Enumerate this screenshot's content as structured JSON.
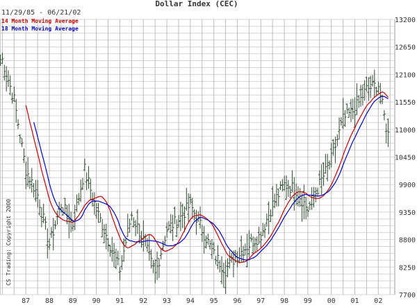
{
  "chart_data": {
    "type": "ohlc",
    "title": "Dollar Index (CEC)",
    "date_range": "11/29/85 - 06/21/02",
    "copyright": "CS Trading: Copyright 2000",
    "legend": [
      {
        "name": "14 Month Moving Average",
        "color": "#cc0000"
      },
      {
        "name": "18 Month Moving Average",
        "color": "#0000cc"
      }
    ],
    "x_ticks": [
      "87",
      "88",
      "89",
      "90",
      "91",
      "92",
      "93",
      "94",
      "95",
      "96",
      "97",
      "98",
      "99",
      "00",
      "01",
      "02"
    ],
    "y_ticks": [
      13200,
      12650,
      12100,
      11550,
      11000,
      10450,
      9900,
      9350,
      8800,
      8250,
      7700
    ],
    "ylim": [
      7700,
      13200
    ],
    "y_axis_side": "right",
    "grid": true,
    "bar_color": "#2e4a2e",
    "monthly_close_key": [
      {
        "x": 1986.0,
        "y": 12400
      },
      {
        "x": 1986.5,
        "y": 11600
      },
      {
        "x": 1987.0,
        "y": 10200
      },
      {
        "x": 1987.5,
        "y": 9700
      },
      {
        "x": 1988.0,
        "y": 8700
      },
      {
        "x": 1988.5,
        "y": 9500
      },
      {
        "x": 1989.0,
        "y": 9100
      },
      {
        "x": 1989.5,
        "y": 10200
      },
      {
        "x": 1990.0,
        "y": 9400
      },
      {
        "x": 1990.5,
        "y": 8800
      },
      {
        "x": 1991.0,
        "y": 8200
      },
      {
        "x": 1991.5,
        "y": 9300
      },
      {
        "x": 1992.0,
        "y": 8800
      },
      {
        "x": 1992.5,
        "y": 8100
      },
      {
        "x": 1993.0,
        "y": 9000
      },
      {
        "x": 1993.5,
        "y": 9200
      },
      {
        "x": 1994.0,
        "y": 9500
      },
      {
        "x": 1994.5,
        "y": 9000
      },
      {
        "x": 1995.0,
        "y": 8500
      },
      {
        "x": 1995.5,
        "y": 8200
      },
      {
        "x": 1996.0,
        "y": 8500
      },
      {
        "x": 1996.5,
        "y": 8700
      },
      {
        "x": 1997.0,
        "y": 8900
      },
      {
        "x": 1997.5,
        "y": 9500
      },
      {
        "x": 1998.0,
        "y": 9900
      },
      {
        "x": 1998.5,
        "y": 9800
      },
      {
        "x": 1999.0,
        "y": 9400
      },
      {
        "x": 1999.5,
        "y": 9900
      },
      {
        "x": 2000.0,
        "y": 10400
      },
      {
        "x": 2000.5,
        "y": 11200
      },
      {
        "x": 2001.0,
        "y": 11400
      },
      {
        "x": 2001.5,
        "y": 11800
      },
      {
        "x": 2002.0,
        "y": 11900
      },
      {
        "x": 2002.4,
        "y": 10900
      }
    ]
  }
}
